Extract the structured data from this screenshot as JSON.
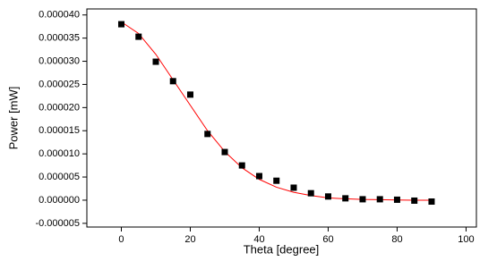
{
  "chart_data": {
    "type": "scatter",
    "x_label": "Theta [degree]",
    "y_label": "Power [mW]",
    "x": [
      0,
      5,
      10,
      15,
      20,
      25,
      30,
      35,
      40,
      45,
      50,
      55,
      60,
      65,
      70,
      75,
      80,
      85,
      90
    ],
    "series": [
      {
        "color": "#000000",
        "values": [
          3.8e-05,
          3.53e-05,
          2.99e-05,
          2.57e-05,
          2.28e-05,
          1.43e-05,
          1.04e-05,
          7.5e-06,
          5.2e-06,
          4.2e-06,
          2.7e-06,
          1.5e-06,
          8e-07,
          4e-07,
          2e-07,
          2e-07,
          1e-07,
          -1e-07,
          -3e-07
        ]
      },
      {
        "type": "line",
        "color": "#ff0000",
        "x": [
          0,
          5,
          10,
          15,
          20,
          25,
          30,
          35,
          40,
          45,
          50,
          55,
          60,
          65,
          70,
          75,
          80,
          85,
          90
        ],
        "values": [
          3.85e-05,
          3.6e-05,
          3.15e-05,
          2.6e-05,
          2.05e-05,
          1.5e-05,
          1.05e-05,
          7e-06,
          4.5e-06,
          2.8e-06,
          1.7e-06,
          1e-06,
          5e-07,
          3e-07,
          1.5e-07,
          1e-07,
          5e-08,
          0,
          0
        ]
      }
    ],
    "xlim": [
      -10,
      103
    ],
    "xticks": [
      0,
      20,
      40,
      60,
      80,
      100
    ],
    "ylim": [
      -5.8e-06,
      4.13e-05
    ],
    "yticks": [
      {
        "value": -5e-06,
        "label": "-0.000005"
      },
      {
        "value": 0,
        "label": "0.000000"
      },
      {
        "value": 5e-06,
        "label": "0.000005"
      },
      {
        "value": 1e-05,
        "label": "0.000010"
      },
      {
        "value": 1.5e-05,
        "label": "0.000015"
      },
      {
        "value": 2e-05,
        "label": "0.000020"
      },
      {
        "value": 2.5e-05,
        "label": "0.000025"
      },
      {
        "value": 3e-05,
        "label": "0.000030"
      },
      {
        "value": 3.5e-05,
        "label": "0.000035"
      },
      {
        "value": 4e-05,
        "label": "0.000040"
      }
    ]
  }
}
